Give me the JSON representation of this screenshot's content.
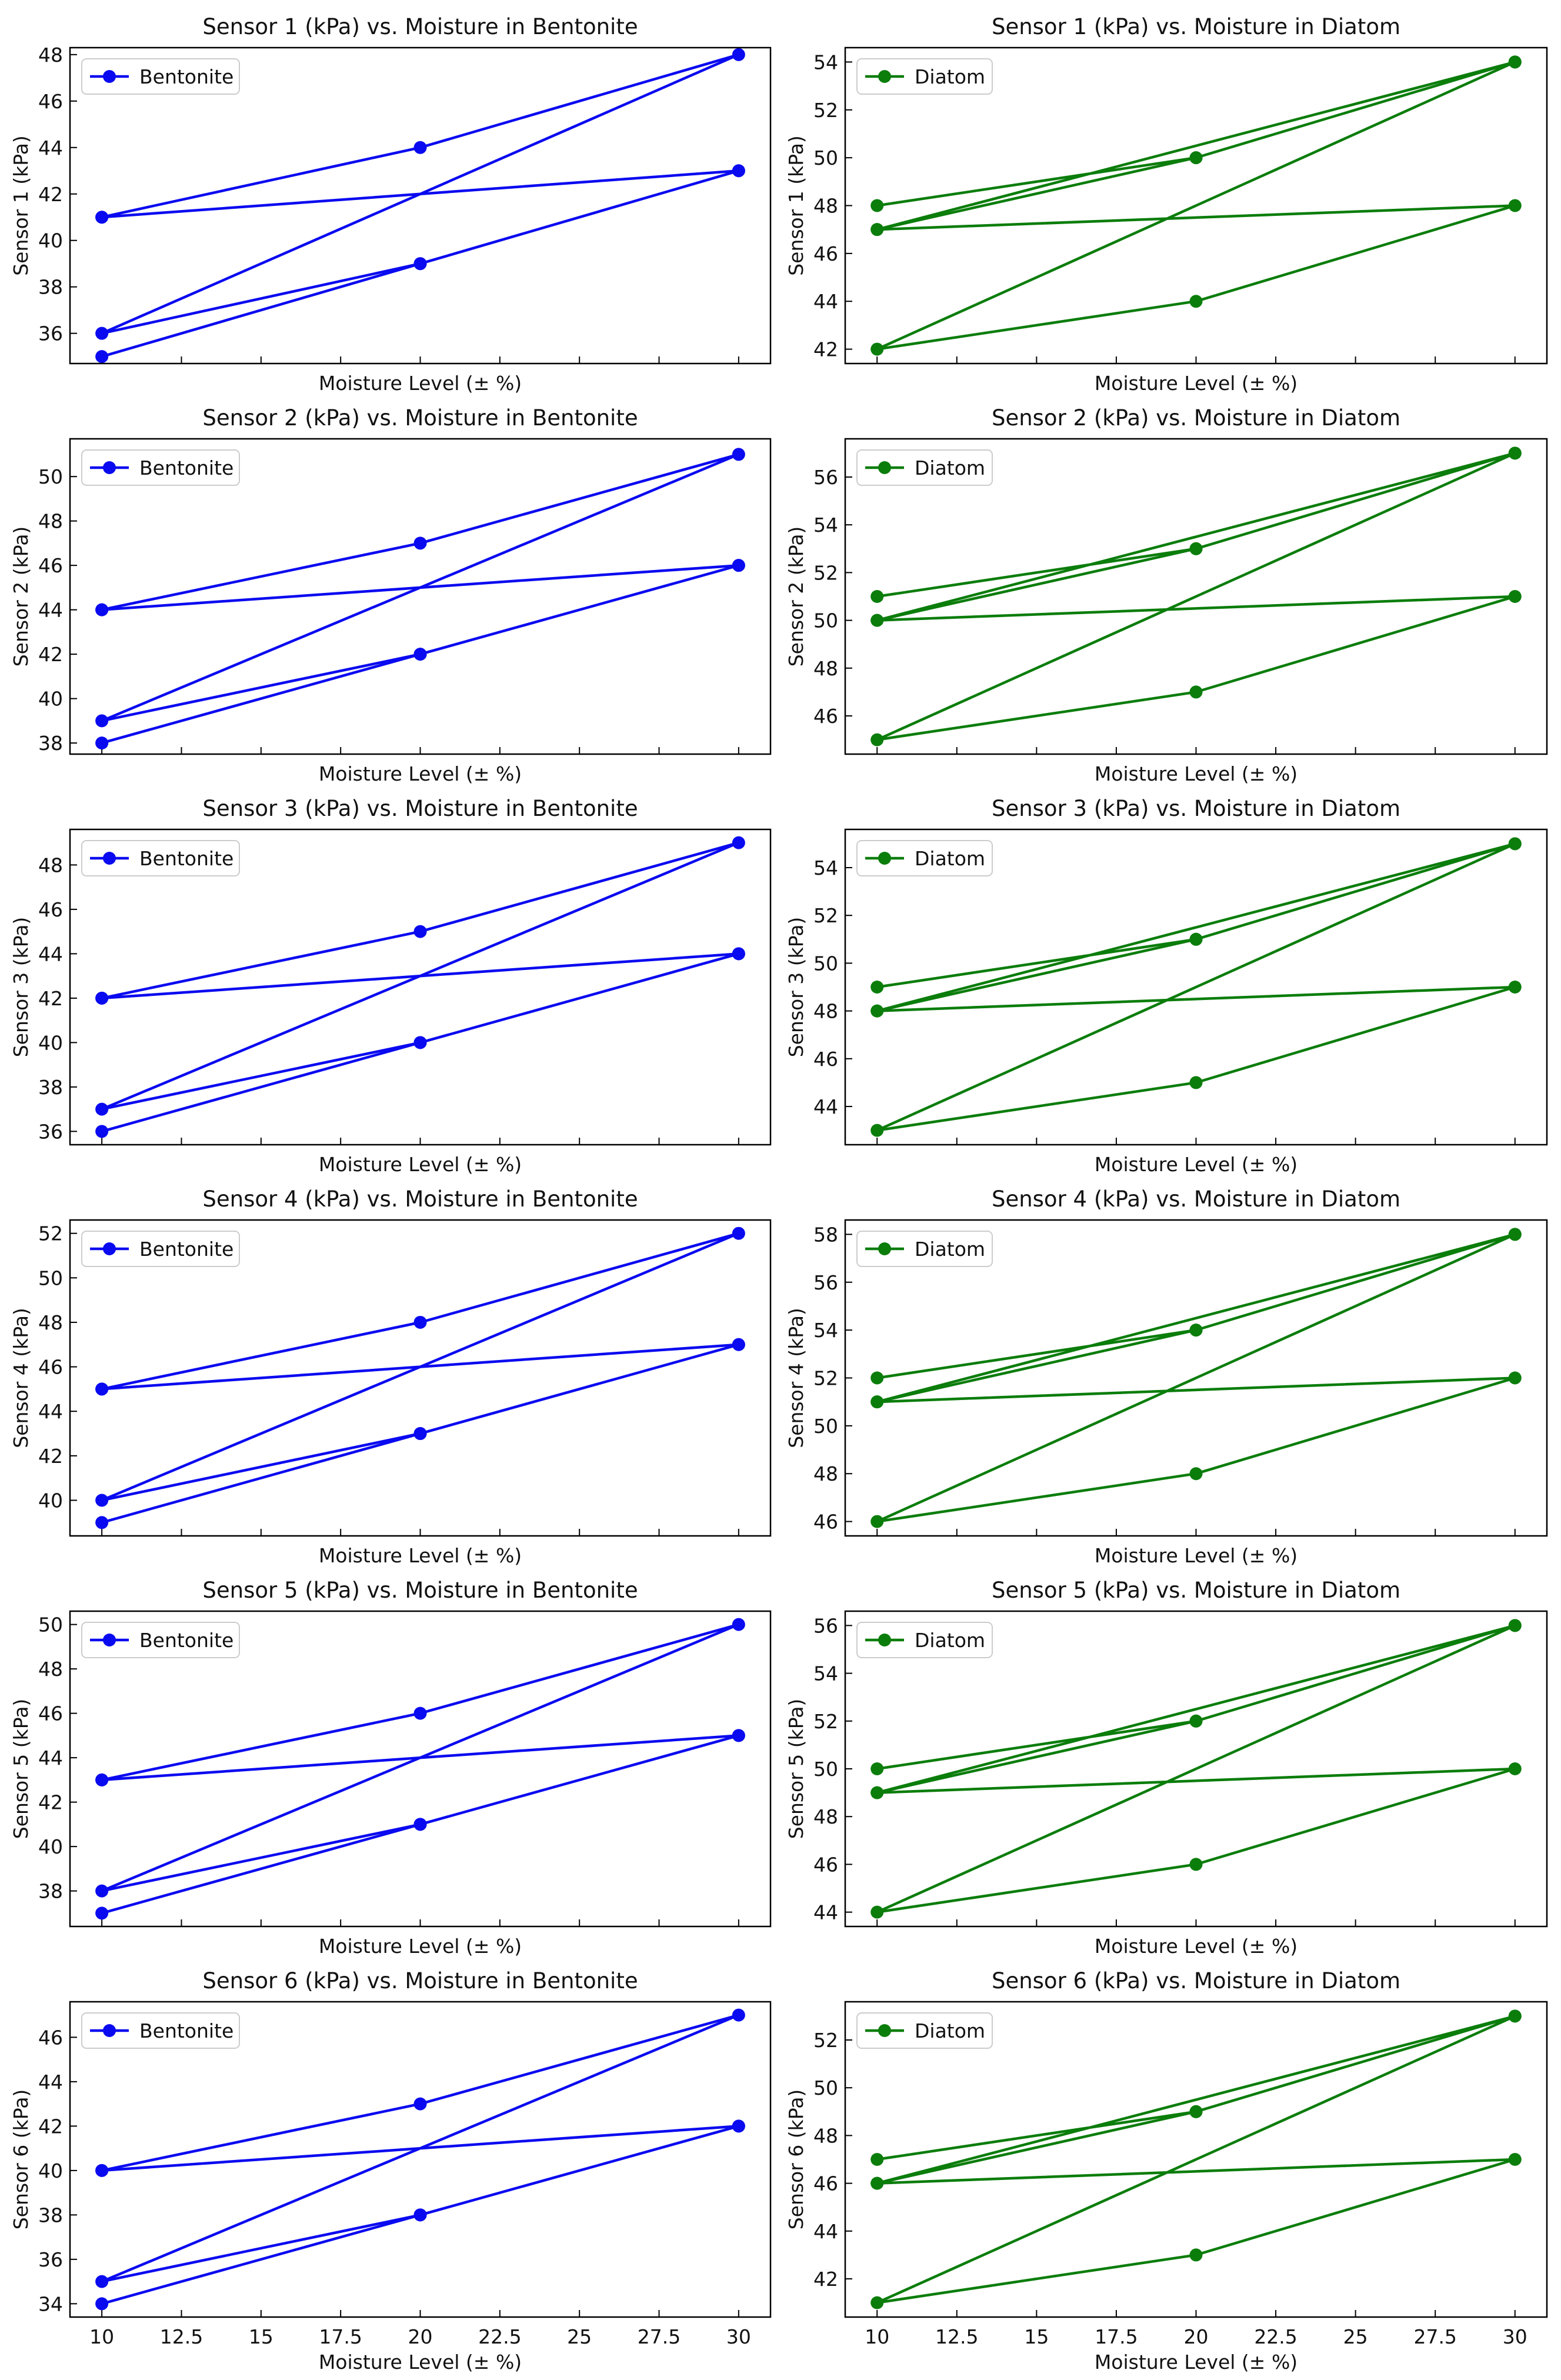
{
  "colors": {
    "bentonite": "#0a0af0",
    "diatom": "#0b7d0b"
  },
  "chart_data": [
    {
      "type": "line",
      "title": "Sensor 1 (kPa) vs. Moisture in Bentonite",
      "xlabel": "Moisture Level (± %)",
      "ylabel": "Sensor 1 (kPa)",
      "legend": "Bentonite",
      "legend_position": "top-left",
      "color_key": "bentonite",
      "x": [
        10,
        20,
        30,
        10,
        20,
        30,
        10,
        20,
        30,
        10
      ],
      "y": [
        41,
        44,
        48,
        36,
        39,
        43,
        35,
        39,
        43,
        41
      ],
      "xlim": [
        9,
        31
      ],
      "ylim": [
        34.7,
        48.3
      ],
      "xticks": [
        10,
        12.5,
        15,
        17.5,
        20,
        22.5,
        25,
        27.5,
        30
      ],
      "yticks": [
        36,
        38,
        40,
        42,
        44,
        46,
        48
      ],
      "show_xtick_labels": false
    },
    {
      "type": "line",
      "title": "Sensor 1 (kPa) vs. Moisture in Diatom",
      "xlabel": "Moisture Level (± %)",
      "ylabel": "Sensor 1 (kPa)",
      "legend": "Diatom",
      "legend_position": "top-left",
      "color_key": "diatom",
      "x": [
        10,
        20,
        30,
        10,
        20,
        30,
        10,
        20,
        30,
        10
      ],
      "y": [
        48,
        50,
        54,
        47,
        50,
        54,
        42,
        44,
        48,
        47
      ],
      "xlim": [
        9,
        31
      ],
      "ylim": [
        41.4,
        54.6
      ],
      "xticks": [
        10,
        12.5,
        15,
        17.5,
        20,
        22.5,
        25,
        27.5,
        30
      ],
      "yticks": [
        42,
        44,
        46,
        48,
        50,
        52,
        54
      ],
      "show_xtick_labels": false
    },
    {
      "type": "line",
      "title": "Sensor 2 (kPa) vs. Moisture in Bentonite",
      "xlabel": "Moisture Level (± %)",
      "ylabel": "Sensor 2 (kPa)",
      "legend": "Bentonite",
      "legend_position": "top-left",
      "color_key": "bentonite",
      "x": [
        10,
        20,
        30,
        10,
        20,
        30,
        10,
        20,
        30,
        10
      ],
      "y": [
        44,
        47,
        51,
        39,
        42,
        46,
        38,
        42,
        46,
        44
      ],
      "xlim": [
        9,
        31
      ],
      "ylim": [
        37.5,
        51.7
      ],
      "xticks": [
        10,
        12.5,
        15,
        17.5,
        20,
        22.5,
        25,
        27.5,
        30
      ],
      "yticks": [
        38,
        40,
        42,
        44,
        46,
        48,
        50
      ],
      "show_xtick_labels": false
    },
    {
      "type": "line",
      "title": "Sensor 2 (kPa) vs. Moisture in Diatom",
      "xlabel": "Moisture Level (± %)",
      "ylabel": "Sensor 2 (kPa)",
      "legend": "Diatom",
      "legend_position": "top-left",
      "color_key": "diatom",
      "x": [
        10,
        20,
        30,
        10,
        20,
        30,
        10,
        20,
        30,
        10
      ],
      "y": [
        51,
        53,
        57,
        50,
        53,
        57,
        45,
        47,
        51,
        50
      ],
      "xlim": [
        9,
        31
      ],
      "ylim": [
        44.4,
        57.6
      ],
      "xticks": [
        10,
        12.5,
        15,
        17.5,
        20,
        22.5,
        25,
        27.5,
        30
      ],
      "yticks": [
        46,
        48,
        50,
        52,
        54,
        56
      ],
      "show_xtick_labels": false
    },
    {
      "type": "line",
      "title": "Sensor 3 (kPa) vs. Moisture in Bentonite",
      "xlabel": "Moisture Level (± %)",
      "ylabel": "Sensor 3 (kPa)",
      "legend": "Bentonite",
      "legend_position": "top-left",
      "color_key": "bentonite",
      "x": [
        10,
        20,
        30,
        10,
        20,
        30,
        10,
        20,
        30,
        10
      ],
      "y": [
        42,
        45,
        49,
        37,
        40,
        44,
        36,
        40,
        44,
        42
      ],
      "xlim": [
        9,
        31
      ],
      "ylim": [
        35.4,
        49.6
      ],
      "xticks": [
        10,
        12.5,
        15,
        17.5,
        20,
        22.5,
        25,
        27.5,
        30
      ],
      "yticks": [
        36,
        38,
        40,
        42,
        44,
        46,
        48
      ],
      "show_xtick_labels": false
    },
    {
      "type": "line",
      "title": "Sensor 3 (kPa) vs. Moisture in Diatom",
      "xlabel": "Moisture Level (± %)",
      "ylabel": "Sensor 3 (kPa)",
      "legend": "Diatom",
      "legend_position": "top-left",
      "color_key": "diatom",
      "x": [
        10,
        20,
        30,
        10,
        20,
        30,
        10,
        20,
        30,
        10
      ],
      "y": [
        49,
        51,
        55,
        48,
        51,
        55,
        43,
        45,
        49,
        48
      ],
      "xlim": [
        9,
        31
      ],
      "ylim": [
        42.4,
        55.6
      ],
      "xticks": [
        10,
        12.5,
        15,
        17.5,
        20,
        22.5,
        25,
        27.5,
        30
      ],
      "yticks": [
        44,
        46,
        48,
        50,
        52,
        54
      ],
      "show_xtick_labels": false
    },
    {
      "type": "line",
      "title": "Sensor 4 (kPa) vs. Moisture in Bentonite",
      "xlabel": "Moisture Level (± %)",
      "ylabel": "Sensor 4 (kPa)",
      "legend": "Bentonite",
      "legend_position": "top-left",
      "color_key": "bentonite",
      "x": [
        10,
        20,
        30,
        10,
        20,
        30,
        10,
        20,
        30,
        10
      ],
      "y": [
        45,
        48,
        52,
        40,
        43,
        47,
        39,
        43,
        47,
        45
      ],
      "xlim": [
        9,
        31
      ],
      "ylim": [
        38.4,
        52.6
      ],
      "xticks": [
        10,
        12.5,
        15,
        17.5,
        20,
        22.5,
        25,
        27.5,
        30
      ],
      "yticks": [
        40,
        42,
        44,
        46,
        48,
        50,
        52
      ],
      "show_xtick_labels": false
    },
    {
      "type": "line",
      "title": "Sensor 4 (kPa) vs. Moisture in Diatom",
      "xlabel": "Moisture Level (± %)",
      "ylabel": "Sensor 4 (kPa)",
      "legend": "Diatom",
      "legend_position": "top-left",
      "color_key": "diatom",
      "x": [
        10,
        20,
        30,
        10,
        20,
        30,
        10,
        20,
        30,
        10
      ],
      "y": [
        52,
        54,
        58,
        51,
        54,
        58,
        46,
        48,
        52,
        51
      ],
      "xlim": [
        9,
        31
      ],
      "ylim": [
        45.4,
        58.6
      ],
      "xticks": [
        10,
        12.5,
        15,
        17.5,
        20,
        22.5,
        25,
        27.5,
        30
      ],
      "yticks": [
        46,
        48,
        50,
        52,
        54,
        56,
        58
      ],
      "show_xtick_labels": false
    },
    {
      "type": "line",
      "title": "Sensor 5 (kPa) vs. Moisture in Bentonite",
      "xlabel": "Moisture Level (± %)",
      "ylabel": "Sensor 5 (kPa)",
      "legend": "Bentonite",
      "legend_position": "top-left",
      "color_key": "bentonite",
      "x": [
        10,
        20,
        30,
        10,
        20,
        30,
        10,
        20,
        30,
        10
      ],
      "y": [
        43,
        46,
        50,
        38,
        41,
        45,
        37,
        41,
        45,
        43
      ],
      "xlim": [
        9,
        31
      ],
      "ylim": [
        36.4,
        50.6
      ],
      "xticks": [
        10,
        12.5,
        15,
        17.5,
        20,
        22.5,
        25,
        27.5,
        30
      ],
      "yticks": [
        38,
        40,
        42,
        44,
        46,
        48,
        50
      ],
      "show_xtick_labels": false
    },
    {
      "type": "line",
      "title": "Sensor 5 (kPa) vs. Moisture in Diatom",
      "xlabel": "Moisture Level (± %)",
      "ylabel": "Sensor 5 (kPa)",
      "legend": "Diatom",
      "legend_position": "top-left",
      "color_key": "diatom",
      "x": [
        10,
        20,
        30,
        10,
        20,
        30,
        10,
        20,
        30,
        10
      ],
      "y": [
        50,
        52,
        56,
        49,
        52,
        56,
        44,
        46,
        50,
        49
      ],
      "xlim": [
        9,
        31
      ],
      "ylim": [
        43.4,
        56.6
      ],
      "xticks": [
        10,
        12.5,
        15,
        17.5,
        20,
        22.5,
        25,
        27.5,
        30
      ],
      "yticks": [
        44,
        46,
        48,
        50,
        52,
        54,
        56
      ],
      "show_xtick_labels": false
    },
    {
      "type": "line",
      "title": "Sensor 6 (kPa) vs. Moisture in Bentonite",
      "xlabel": "Moisture Level (± %)",
      "ylabel": "Sensor 6 (kPa)",
      "legend": "Bentonite",
      "legend_position": "top-left",
      "color_key": "bentonite",
      "x": [
        10,
        20,
        30,
        10,
        20,
        30,
        10,
        20,
        30,
        10
      ],
      "y": [
        40,
        43,
        47,
        35,
        38,
        42,
        34,
        38,
        42,
        40
      ],
      "xlim": [
        9,
        31
      ],
      "ylim": [
        33.4,
        47.6
      ],
      "xticks": [
        10,
        12.5,
        15,
        17.5,
        20,
        22.5,
        25,
        27.5,
        30
      ],
      "yticks": [
        34,
        36,
        38,
        40,
        42,
        44,
        46
      ],
      "show_xtick_labels": true
    },
    {
      "type": "line",
      "title": "Sensor 6 (kPa) vs. Moisture in Diatom",
      "xlabel": "Moisture Level (± %)",
      "ylabel": "Sensor 6 (kPa)",
      "legend": "Diatom",
      "legend_position": "top-left",
      "color_key": "diatom",
      "x": [
        10,
        20,
        30,
        10,
        20,
        30,
        10,
        20,
        30,
        10
      ],
      "y": [
        47,
        49,
        53,
        46,
        49,
        53,
        41,
        43,
        47,
        46
      ],
      "xlim": [
        9,
        31
      ],
      "ylim": [
        40.4,
        53.6
      ],
      "xticks": [
        10,
        12.5,
        15,
        17.5,
        20,
        22.5,
        25,
        27.5,
        30
      ],
      "yticks": [
        42,
        44,
        46,
        48,
        50,
        52
      ],
      "show_xtick_labels": true
    }
  ]
}
